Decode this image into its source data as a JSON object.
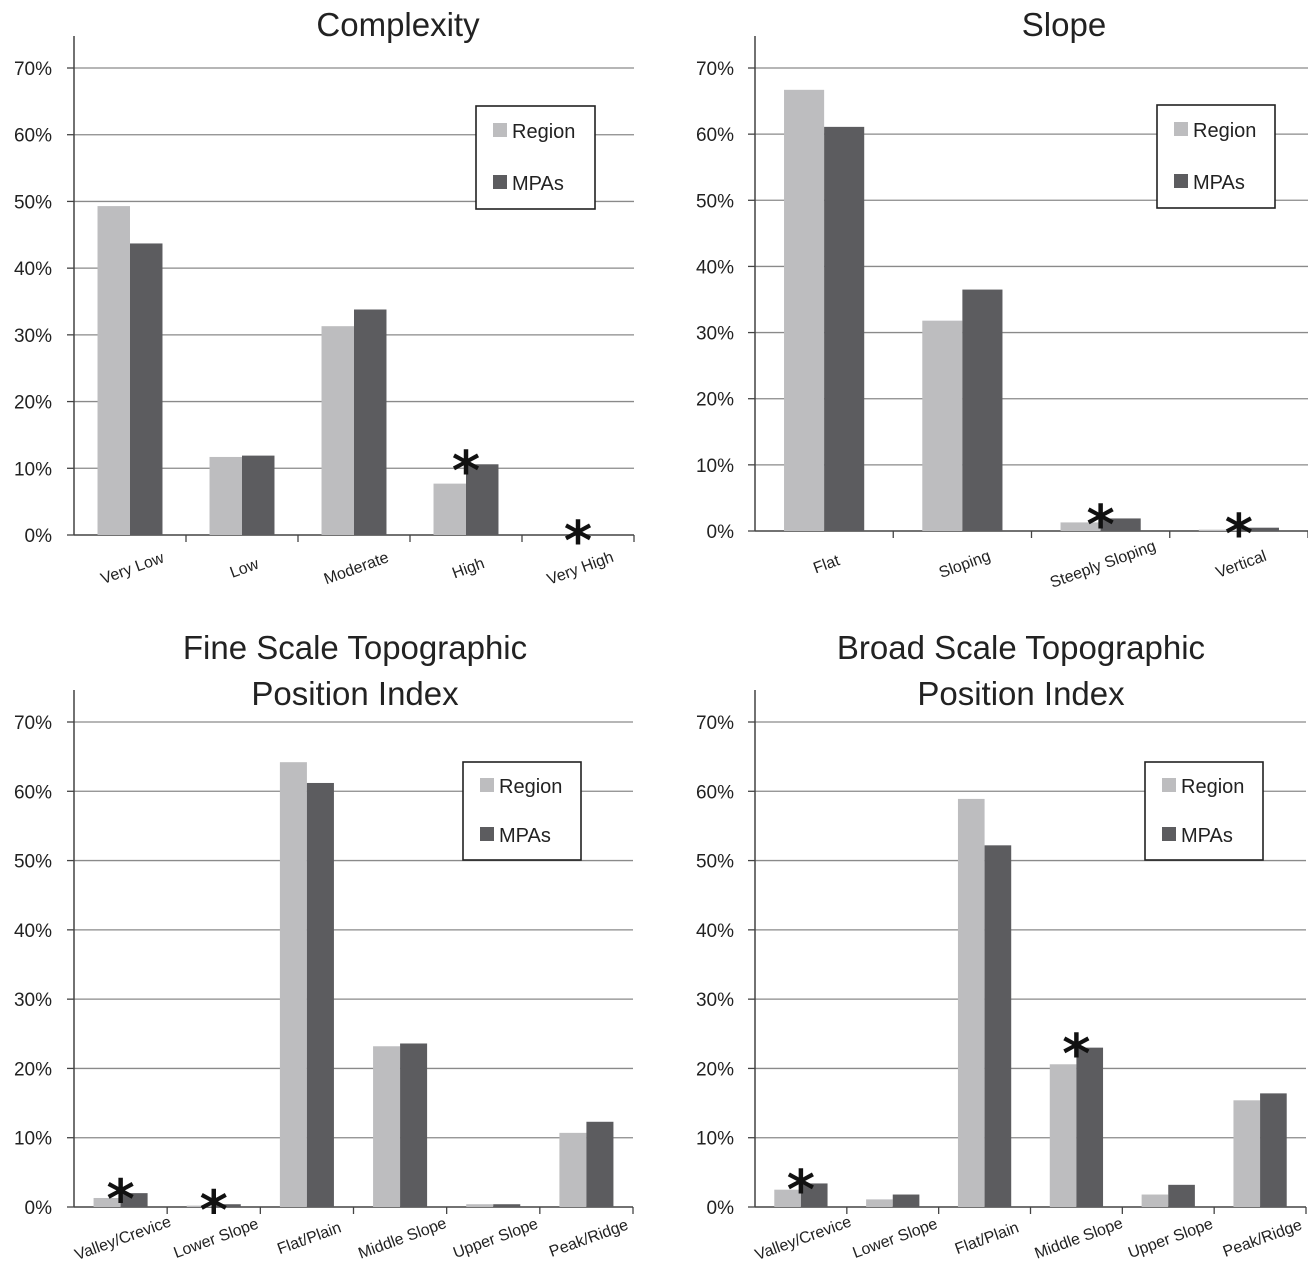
{
  "colors": {
    "region": "#bdbdbf",
    "mpas": "#5c5c5f",
    "grid": "#8a8a8a",
    "axis": "#444444"
  },
  "chart_data": [
    {
      "type": "bar",
      "title": [
        "Complexity"
      ],
      "categories": [
        "Very Low",
        "Low",
        "Moderate",
        "High",
        "Very High"
      ],
      "series": [
        {
          "name": "Region",
          "values": [
            49.3,
            11.7,
            31.3,
            7.7,
            0.0
          ]
        },
        {
          "name": "MPAs",
          "values": [
            43.7,
            11.9,
            33.8,
            10.6,
            0.1
          ]
        }
      ],
      "significant": [
        false,
        false,
        false,
        true,
        true
      ],
      "ylim": [
        0,
        70
      ],
      "yticks": [
        "0%",
        "10%",
        "20%",
        "30%",
        "40%",
        "50%",
        "60%",
        "70%"
      ],
      "grid": true,
      "legend": "top-right"
    },
    {
      "type": "bar",
      "title": [
        "Slope"
      ],
      "categories": [
        "Flat",
        "Sloping",
        "Steeply Sloping",
        "Vertical"
      ],
      "series": [
        {
          "name": "Region",
          "values": [
            66.7,
            31.8,
            1.3,
            0.2
          ]
        },
        {
          "name": "MPAs",
          "values": [
            61.1,
            36.5,
            1.9,
            0.5
          ]
        }
      ],
      "significant": [
        false,
        false,
        true,
        true
      ],
      "ylim": [
        0,
        70
      ],
      "yticks": [
        "0%",
        "10%",
        "20%",
        "30%",
        "40%",
        "50%",
        "60%",
        "70%"
      ],
      "grid": true,
      "legend": "top-right"
    },
    {
      "type": "bar",
      "title": [
        "Fine Scale Topographic",
        "Position Index"
      ],
      "categories": [
        "Valley/Crevice",
        "Lower Slope",
        "Flat/Plain",
        "Middle Slope",
        "Upper Slope",
        "Peak/Ridge"
      ],
      "series": [
        {
          "name": "Region",
          "values": [
            1.3,
            0.2,
            64.2,
            23.2,
            0.4,
            10.7
          ]
        },
        {
          "name": "MPAs",
          "values": [
            2.0,
            0.4,
            61.2,
            23.6,
            0.4,
            12.3
          ]
        }
      ],
      "significant": [
        true,
        true,
        false,
        false,
        false,
        false
      ],
      "ylim": [
        0,
        70
      ],
      "yticks": [
        "0%",
        "10%",
        "20%",
        "30%",
        "40%",
        "50%",
        "60%",
        "70%"
      ],
      "grid": true,
      "legend": "top-right"
    },
    {
      "type": "bar",
      "title": [
        "Broad Scale Topographic",
        "Position Index"
      ],
      "categories": [
        "Valley/Crevice",
        "Lower Slope",
        "Flat/Plain",
        "Middle Slope",
        "Upper Slope",
        "Peak/Ridge"
      ],
      "series": [
        {
          "name": "Region",
          "values": [
            2.5,
            1.1,
            58.9,
            20.6,
            1.8,
            15.4
          ]
        },
        {
          "name": "MPAs",
          "values": [
            3.4,
            1.8,
            52.2,
            23.0,
            3.2,
            16.4
          ]
        }
      ],
      "significant": [
        true,
        false,
        false,
        true,
        false,
        false
      ],
      "ylim": [
        0,
        70
      ],
      "yticks": [
        "0%",
        "10%",
        "20%",
        "30%",
        "40%",
        "50%",
        "60%",
        "70%"
      ],
      "grid": true,
      "legend": "top-right"
    }
  ]
}
